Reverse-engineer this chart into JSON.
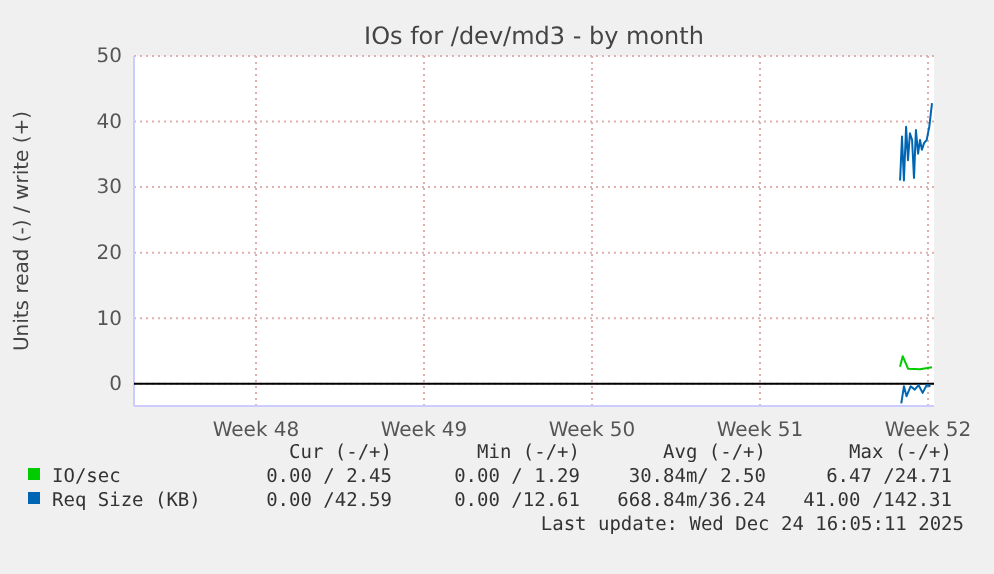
{
  "chart_data": {
    "type": "line",
    "title": "IOs for /dev/md3 - by month",
    "ylabel": "Units read (-) / write (+)",
    "xlim": [
      "2025-11-22T10:00",
      "2025-12-25T18:00"
    ],
    "xticks": [
      {
        "value": "2025-11-27T12:00",
        "label": "Week 48"
      },
      {
        "value": "2025-12-04T12:00",
        "label": "Week 49"
      },
      {
        "value": "2025-12-11T12:00",
        "label": "Week 50"
      },
      {
        "value": "2025-12-18T12:00",
        "label": "Week 51"
      },
      {
        "value": "2025-12-25T12:00",
        "label": "Week 52"
      }
    ],
    "ylim": [
      -3.4,
      50
    ],
    "yticks": [
      0,
      10,
      20,
      30,
      40,
      50
    ],
    "grid": true,
    "legend": "bottom",
    "ref_lines": [
      {
        "axis": "y",
        "value": 0,
        "color": "#000000"
      }
    ],
    "series": [
      {
        "name": "IO/sec",
        "color": "#00cc00",
        "x": [
          "2025-12-24T08:05",
          "2025-12-24T10:43",
          "2025-12-24T16:00",
          "2025-12-25T04:00",
          "2025-12-25T16:00"
        ],
        "values": [
          2.6,
          4.2,
          2.3,
          2.2,
          2.5
        ]
      },
      {
        "name": "Req Size (KB)",
        "color": "#0066b3",
        "x": [
          "2025-12-24T08:05",
          "2025-12-24T10:00",
          "2025-12-24T11:55",
          "2025-12-24T14:05",
          "2025-12-24T16:00",
          "2025-12-24T17:55",
          "2025-12-24T20:05",
          "2025-12-24T22:00",
          "2025-12-24T23:55",
          "2025-12-25T02:05",
          "2025-12-25T04:00",
          "2025-12-25T05:55",
          "2025-12-25T08:05",
          "2025-12-25T10:43",
          "2025-12-25T13:22",
          "2025-12-25T16:00"
        ],
        "values": [
          31,
          37.7,
          31,
          39.2,
          34.1,
          38.2,
          37.2,
          31.4,
          38.7,
          35.1,
          37.2,
          35.7,
          36.7,
          37.2,
          39.3,
          42.8
        ]
      },
      {
        "color": "#0066b3",
        "x": [
          "2025-12-24T09:17",
          "2025-12-24T11:55",
          "2025-12-24T14:34",
          "2025-12-24T18:38",
          "2025-12-24T22:43",
          "2025-12-25T02:34",
          "2025-12-25T06:38",
          "2025-12-25T10:43",
          "2025-12-25T14:34"
        ],
        "values": [
          -3,
          -0.4,
          -1.9,
          -0.4,
          -0.9,
          -0.2,
          -1.4,
          -0.2,
          -0.4
        ]
      }
    ],
    "annotations": [
      "Cur (-/+)",
      "Min (-/+)",
      "Avg (-/+)",
      "Max (-/+)",
      "0.00 / 2.45",
      "0.00 / 1.29",
      "30.84m/ 2.50",
      "6.47 /24.71",
      "0.00 /42.59",
      "0.00 /12.61",
      "668.84m/36.24",
      "41.00 /142.31",
      "Last update: Wed Dec 24 16:05:11 2025"
    ]
  }
}
